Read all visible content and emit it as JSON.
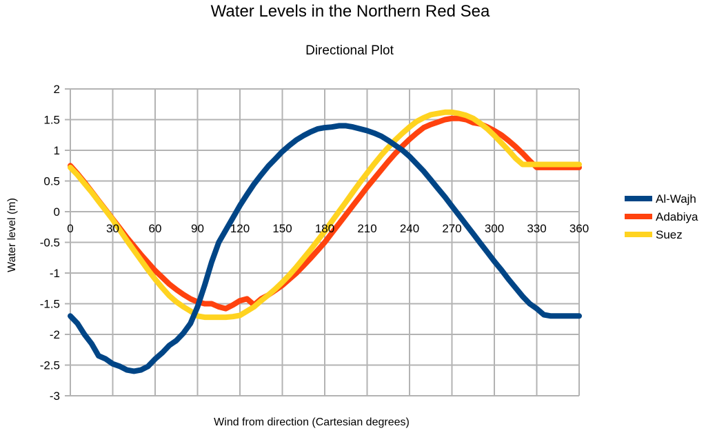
{
  "chart_data": {
    "type": "line",
    "title": "Water Levels in the Northern Red Sea",
    "subtitle": "Directional Plot",
    "xlabel": "Wind from direction (Cartesian degrees)",
    "ylabel": "Water level (m)",
    "xlim": [
      0,
      360
    ],
    "ylim": [
      -3,
      2
    ],
    "xticks": [
      "0",
      "30",
      "60",
      "90",
      "120",
      "150",
      "180",
      "210",
      "240",
      "270",
      "300",
      "330",
      "360"
    ],
    "yticks": [
      "2",
      "1.5",
      "1",
      "0.5",
      "0",
      "-0.5",
      "-1",
      "-1.5",
      "-2",
      "-2.5",
      "-3"
    ],
    "grid": true,
    "legend_position": "right",
    "x": [
      0,
      5,
      10,
      15,
      20,
      25,
      30,
      35,
      40,
      45,
      50,
      55,
      60,
      65,
      70,
      75,
      80,
      85,
      90,
      95,
      100,
      105,
      110,
      115,
      120,
      125,
      130,
      135,
      140,
      145,
      150,
      155,
      160,
      165,
      170,
      175,
      180,
      185,
      190,
      195,
      200,
      205,
      210,
      215,
      220,
      225,
      230,
      235,
      240,
      245,
      250,
      255,
      260,
      265,
      270,
      275,
      280,
      285,
      290,
      295,
      300,
      305,
      310,
      315,
      320,
      325,
      330,
      335,
      340,
      345,
      350,
      355,
      360
    ],
    "series": [
      {
        "name": "Al-Wajh",
        "color": "#004586",
        "values": [
          -1.7,
          -1.82,
          -2.0,
          -2.15,
          -2.35,
          -2.4,
          -2.48,
          -2.52,
          -2.58,
          -2.6,
          -2.58,
          -2.52,
          -2.4,
          -2.3,
          -2.18,
          -2.1,
          -1.98,
          -1.82,
          -1.55,
          -1.2,
          -0.82,
          -0.5,
          -0.3,
          -0.1,
          0.1,
          0.28,
          0.45,
          0.6,
          0.74,
          0.86,
          0.98,
          1.08,
          1.17,
          1.24,
          1.3,
          1.35,
          1.37,
          1.38,
          1.4,
          1.4,
          1.38,
          1.35,
          1.32,
          1.28,
          1.23,
          1.16,
          1.08,
          1.0,
          0.9,
          0.78,
          0.66,
          0.52,
          0.38,
          0.24,
          0.09,
          -0.06,
          -0.21,
          -0.36,
          -0.51,
          -0.66,
          -0.81,
          -0.95,
          -1.1,
          -1.24,
          -1.38,
          -1.5,
          -1.58,
          -1.68,
          -1.7,
          -1.7,
          -1.7,
          -1.7,
          -1.7
        ]
      },
      {
        "name": "Adabiya",
        "color": "#ff420e",
        "values": [
          0.75,
          0.62,
          0.48,
          0.33,
          0.18,
          0.03,
          -0.12,
          -0.27,
          -0.42,
          -0.56,
          -0.7,
          -0.83,
          -0.96,
          -1.07,
          -1.18,
          -1.27,
          -1.35,
          -1.42,
          -1.47,
          -1.5,
          -1.5,
          -1.55,
          -1.58,
          -1.52,
          -1.45,
          -1.42,
          -1.52,
          -1.42,
          -1.36,
          -1.28,
          -1.2,
          -1.1,
          -1.0,
          -0.88,
          -0.76,
          -0.63,
          -0.5,
          -0.35,
          -0.2,
          -0.05,
          0.1,
          0.25,
          0.4,
          0.54,
          0.68,
          0.82,
          0.95,
          1.07,
          1.18,
          1.28,
          1.37,
          1.42,
          1.46,
          1.5,
          1.52,
          1.52,
          1.5,
          1.45,
          1.43,
          1.38,
          1.32,
          1.25,
          1.16,
          1.06,
          0.95,
          0.83,
          0.72,
          0.72,
          0.72,
          0.72,
          0.72,
          0.72,
          0.72
        ]
      },
      {
        "name": "Suez",
        "color": "#ffd320",
        "values": [
          0.72,
          0.6,
          0.46,
          0.32,
          0.17,
          0.02,
          -0.13,
          -0.3,
          -0.47,
          -0.63,
          -0.79,
          -0.95,
          -1.1,
          -1.24,
          -1.37,
          -1.47,
          -1.55,
          -1.62,
          -1.7,
          -1.72,
          -1.72,
          -1.72,
          -1.72,
          -1.71,
          -1.69,
          -1.62,
          -1.55,
          -1.45,
          -1.36,
          -1.26,
          -1.15,
          -1.03,
          -0.9,
          -0.76,
          -0.62,
          -0.47,
          -0.32,
          -0.16,
          0.0,
          0.16,
          0.32,
          0.48,
          0.63,
          0.78,
          0.92,
          1.05,
          1.17,
          1.28,
          1.38,
          1.47,
          1.53,
          1.58,
          1.6,
          1.62,
          1.62,
          1.6,
          1.57,
          1.52,
          1.44,
          1.35,
          1.24,
          1.12,
          1.0,
          0.87,
          0.77,
          0.77,
          0.77,
          0.77,
          0.77,
          0.77,
          0.77,
          0.77,
          0.77
        ]
      }
    ]
  }
}
